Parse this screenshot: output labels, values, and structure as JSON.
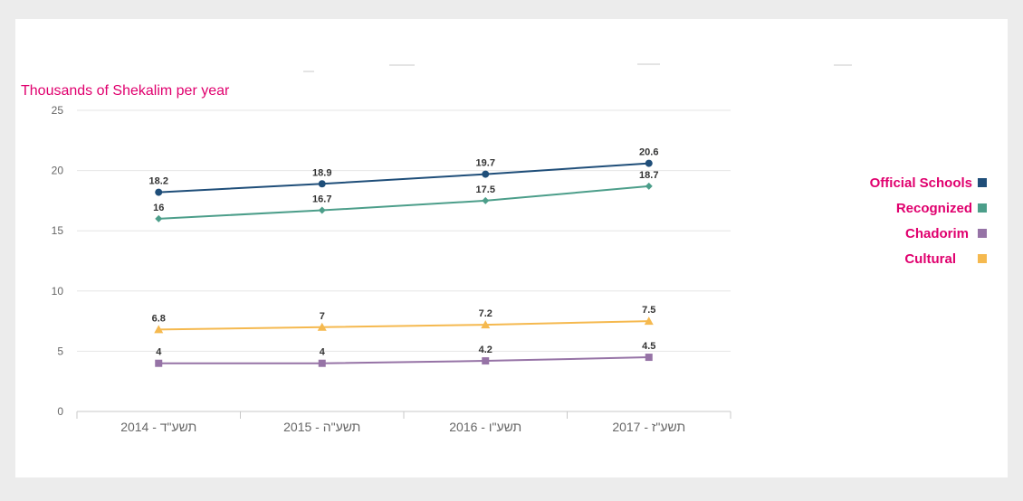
{
  "chart_data": {
    "type": "line",
    "ylabel": "Thousands of Shekalim per year",
    "xlabel": "",
    "categories": [
      "תשע\"ד - 2014",
      "תשע\"ה - 2015",
      "תשע\"ו - 2016",
      "תשע\"ז - 2017"
    ],
    "ylim": [
      0,
      25
    ],
    "yticks": [
      0,
      5,
      10,
      15,
      20,
      25
    ],
    "grid": true,
    "legend_position": "right",
    "series": [
      {
        "name": "Official Schools",
        "values": [
          18.2,
          18.9,
          19.7,
          20.6
        ],
        "labels": [
          "18.2",
          "18.9",
          "19.7",
          "20.6"
        ],
        "color": "#1f4e79",
        "marker": "circle"
      },
      {
        "name": "Recognized",
        "values": [
          16,
          16.7,
          17.5,
          18.7
        ],
        "labels": [
          "16",
          "16.7",
          "17.5",
          "18.7"
        ],
        "color": "#4c9e8a",
        "marker": "diamond"
      },
      {
        "name": "Chadorim",
        "values": [
          4,
          4,
          4.2,
          4.5
        ],
        "labels": [
          "4",
          "4",
          "4.2",
          "4.5"
        ],
        "color": "#9673a6",
        "marker": "square"
      },
      {
        "name": "Cultural",
        "values": [
          6.8,
          7,
          7.2,
          7.5
        ],
        "labels": [
          "6.8",
          "7",
          "7.2",
          "7.5"
        ],
        "color": "#f5b94f",
        "marker": "triangle"
      }
    ]
  },
  "legend_order": [
    0,
    1,
    2,
    3
  ]
}
